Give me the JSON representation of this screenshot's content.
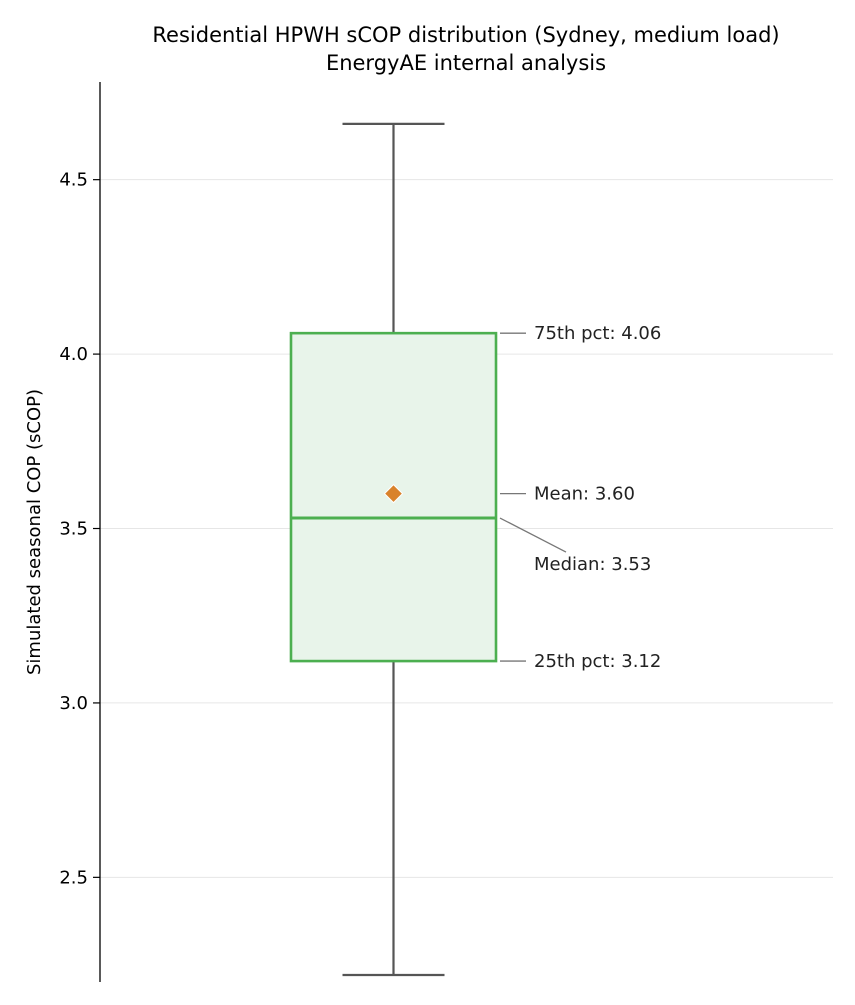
{
  "chart_data": {
    "type": "box",
    "title": "Residential HPWH sCOP distribution (Sydney, medium load)",
    "subtitle": "EnergyAE internal analysis",
    "xlabel": "",
    "ylabel": "Simulated seasonal COP (sCOP)",
    "ylim": [
      2.2,
      4.78
    ],
    "yticks": [
      2.5,
      3.0,
      3.5,
      4.0,
      4.5
    ],
    "ytick_labels": [
      "2.5",
      "3.0",
      "3.5",
      "4.0",
      "4.5"
    ],
    "grid": "horizontal",
    "box": {
      "whisker_low": 2.22,
      "q1": 3.12,
      "median": 3.53,
      "mean": 3.6,
      "q3": 4.06,
      "whisker_high": 4.66
    },
    "annotations": [
      {
        "target": "q3",
        "text": "75th pct: 4.06"
      },
      {
        "target": "mean",
        "text": "Mean: 3.60"
      },
      {
        "target": "median",
        "text": "Median: 3.53"
      },
      {
        "target": "q1",
        "text": "25th pct: 3.12"
      }
    ],
    "colors": {
      "box_edge": "#4caf50",
      "box_fill": "#e8f4ea",
      "whisker": "#555555",
      "mean_marker": "#d9822b",
      "grid": "#e6e6e6",
      "annotation_line": "#777777"
    }
  }
}
